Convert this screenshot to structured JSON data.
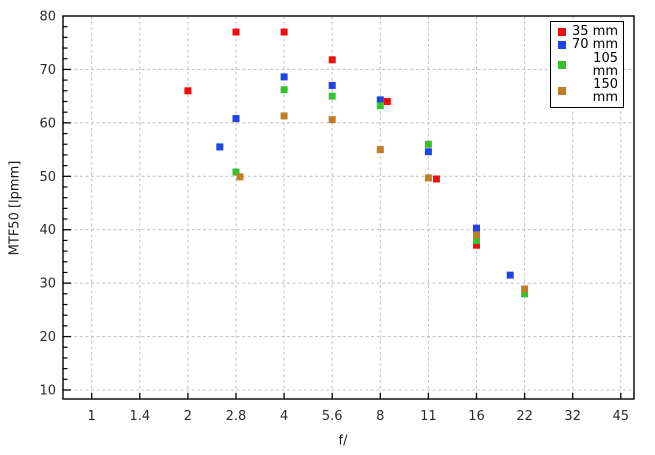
{
  "chart_data": {
    "type": "scatter",
    "title": "",
    "xlabel": "f/",
    "ylabel": "MTF50 [lpmm]",
    "x_scale": "log",
    "x_ticks": [
      1,
      1.4,
      2,
      2.8,
      4,
      5.6,
      8,
      11,
      16,
      22,
      32,
      45
    ],
    "x_tick_labels": [
      "1",
      "1.4",
      "2",
      "2.8",
      "4",
      "5.6",
      "8",
      "11",
      "16",
      "22",
      "32",
      "45"
    ],
    "y_ticks": [
      10,
      20,
      30,
      40,
      50,
      60,
      70,
      80
    ],
    "y_minor_tick_step": 2,
    "ylim": [
      10,
      80
    ],
    "grid": "dashed",
    "legend_position": "top-right",
    "marker": "square",
    "series": [
      {
        "name": "35 mm",
        "color": "#ee0c0c",
        "points": [
          {
            "f": 2,
            "mtf50": 66
          },
          {
            "f": 2.8,
            "mtf50": 77
          },
          {
            "f": 4,
            "mtf50": 77
          },
          {
            "f": 5.6,
            "mtf50": 71.8
          },
          {
            "f": 8,
            "mtf50": 64.0,
            "dx": 7
          },
          {
            "f": 11,
            "mtf50": 49.5,
            "dx": 8
          },
          {
            "f": 16,
            "mtf50": 37.1
          }
        ]
      },
      {
        "name": "70 mm",
        "color": "#1e44e8",
        "points": [
          {
            "f": 2.5,
            "mtf50": 55.5
          },
          {
            "f": 2.8,
            "mtf50": 60.8
          },
          {
            "f": 4,
            "mtf50": 68.6
          },
          {
            "f": 5.6,
            "mtf50": 67.0
          },
          {
            "f": 8,
            "mtf50": 64.3
          },
          {
            "f": 11,
            "mtf50": 54.6
          },
          {
            "f": 16,
            "mtf50": 40.3
          },
          {
            "f": 20,
            "mtf50": 31.5
          }
        ]
      },
      {
        "name": "105 mm",
        "color": "#32c42f",
        "points": [
          {
            "f": 2.8,
            "mtf50": 50.8
          },
          {
            "f": 4,
            "mtf50": 66.2
          },
          {
            "f": 5.6,
            "mtf50": 65.0
          },
          {
            "f": 8,
            "mtf50": 63.2
          },
          {
            "f": 11,
            "mtf50": 56.0
          },
          {
            "f": 16,
            "mtf50": 38.0
          },
          {
            "f": 22,
            "mtf50": 28.0
          }
        ]
      },
      {
        "name": "150 mm",
        "color": "#c17d23",
        "points": [
          {
            "f": 2.8,
            "mtf50": 49.9,
            "dx": 4
          },
          {
            "f": 4,
            "mtf50": 61.3
          },
          {
            "f": 5.6,
            "mtf50": 60.6
          },
          {
            "f": 8,
            "mtf50": 55.0
          },
          {
            "f": 11,
            "mtf50": 49.7
          },
          {
            "f": 16,
            "mtf50": 39.0
          },
          {
            "f": 22,
            "mtf50": 28.9
          }
        ]
      }
    ],
    "style": {
      "background": "#ffffff",
      "grid_color": "#c6c6c6",
      "axis_color": "#000000",
      "tick_text_color": "#2b2b2b"
    }
  }
}
